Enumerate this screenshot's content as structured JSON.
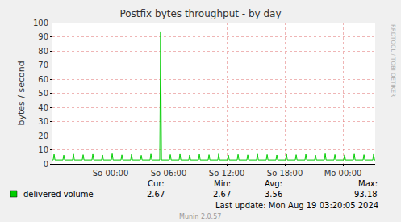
{
  "chart_data": {
    "type": "line",
    "title": "Postfix bytes throughput - by day",
    "y_label": "bytes / second",
    "x": [
      -6,
      -5.92,
      -5.83,
      -5.74,
      -4.92,
      -4.83,
      -4.74,
      -3.92,
      -3.83,
      -3.74,
      -2.92,
      -2.83,
      -2.74,
      -1.92,
      -1.83,
      -1.74,
      -0.92,
      -0.83,
      -0.74,
      0.08,
      0.17,
      0.26,
      1.08,
      1.17,
      1.26,
      2.08,
      2.17,
      2.26,
      3.08,
      3.17,
      3.26,
      4.08,
      4.17,
      4.26,
      5.08,
      5.17,
      5.26,
      6.08,
      6.17,
      6.26,
      7.08,
      7.17,
      7.26,
      8.08,
      8.17,
      8.26,
      9.08,
      9.17,
      9.26,
      10.08,
      10.17,
      10.26,
      11.08,
      11.17,
      11.26,
      12.08,
      12.17,
      12.26,
      13.08,
      13.17,
      13.26,
      14.08,
      14.17,
      14.26,
      15.08,
      15.17,
      15.26,
      16.08,
      16.17,
      16.26,
      17.08,
      17.17,
      17.26,
      18.08,
      18.17,
      18.26,
      19.08,
      19.17,
      19.26,
      20.08,
      20.17,
      20.26,
      21.08,
      21.17,
      21.26,
      22.08,
      22.17,
      22.26,
      23.08,
      23.17,
      23.26,
      24.08,
      24.17,
      24.26,
      25.08,
      25.17,
      25.26,
      26.08,
      26.17,
      26.26,
      27.08,
      27.17,
      27.26,
      27.33
    ],
    "series": [
      {
        "name": "delivered volume",
        "color": "#00cc00",
        "values": [
          2.8,
          2.8,
          6.8,
          2.8,
          2.8,
          6.2,
          2.8,
          2.8,
          7.0,
          2.8,
          2.8,
          6.5,
          2.8,
          2.8,
          6.9,
          2.8,
          2.8,
          6.3,
          2.8,
          2.8,
          7.2,
          2.8,
          2.8,
          6.4,
          2.8,
          2.8,
          6.8,
          2.8,
          2.8,
          6.1,
          2.8,
          2.8,
          7.0,
          2.8,
          2.8,
          93.18,
          2.8,
          2.8,
          6.6,
          2.8,
          2.8,
          6.9,
          2.8,
          2.8,
          6.3,
          2.8,
          2.8,
          6.8,
          2.8,
          2.8,
          6.5,
          2.8,
          2.8,
          7.1,
          2.8,
          2.8,
          6.2,
          2.8,
          2.8,
          6.7,
          2.8,
          2.8,
          6.4,
          2.8,
          2.8,
          7.0,
          2.8,
          2.8,
          6.6,
          2.8,
          2.8,
          6.3,
          2.8,
          2.8,
          6.9,
          2.8,
          2.8,
          6.5,
          2.8,
          2.8,
          6.8,
          2.8,
          2.8,
          6.2,
          2.8,
          2.8,
          7.2,
          2.8,
          2.8,
          6.6,
          2.8,
          2.8,
          6.4,
          2.8,
          2.8,
          7.0,
          2.8,
          2.8,
          6.5,
          2.8,
          2.8,
          6.9,
          2.8,
          2.67
        ]
      }
    ],
    "xlim": [
      -6,
      27.33
    ],
    "xticks": [
      {
        "value": 0,
        "label": "So 00:00"
      },
      {
        "value": 6,
        "label": "So 06:00"
      },
      {
        "value": 12,
        "label": "So 12:00"
      },
      {
        "value": 18,
        "label": "So 18:00"
      },
      {
        "value": 24,
        "label": "Mo 00:00"
      }
    ],
    "ylim": [
      0,
      100
    ],
    "yticks": [
      0,
      10,
      20,
      30,
      40,
      50,
      60,
      70,
      80,
      90,
      100
    ],
    "grid": true,
    "stats": {
      "headers": [
        "Cur:",
        "Min:",
        "Avg:",
        "Max:"
      ],
      "values": [
        2.67,
        2.67,
        3.56,
        93.18
      ]
    },
    "last_update": "Last update: Mon Aug 19 03:20:05 2024",
    "footer": "Munin 2.0.57",
    "watermark": "RRDTOOL / TOBI OETIKER"
  }
}
